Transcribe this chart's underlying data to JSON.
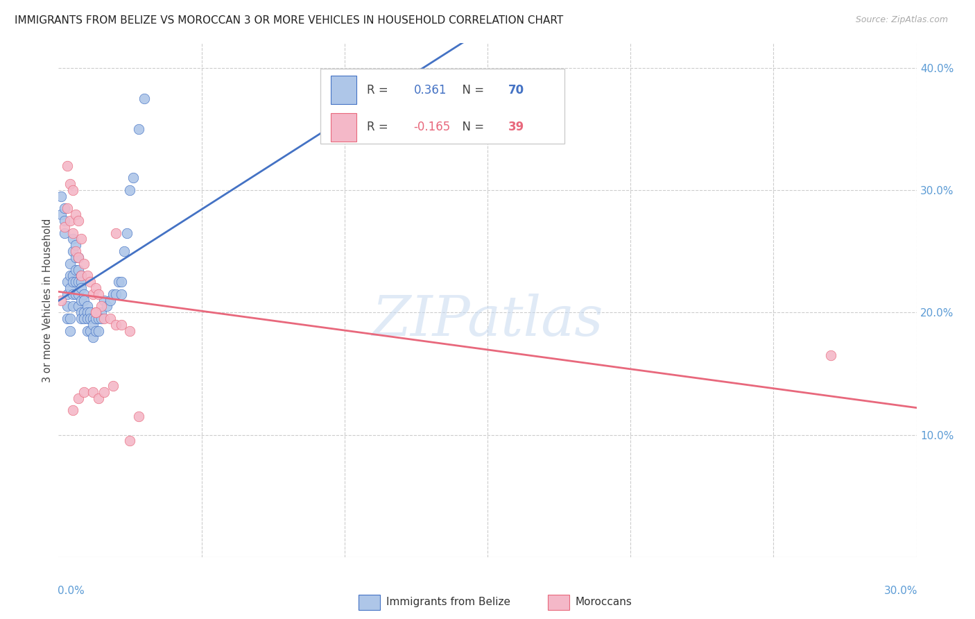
{
  "title": "IMMIGRANTS FROM BELIZE VS MOROCCAN 3 OR MORE VEHICLES IN HOUSEHOLD CORRELATION CHART",
  "source": "Source: ZipAtlas.com",
  "ylabel": "3 or more Vehicles in Household",
  "xlim": [
    0.0,
    0.3
  ],
  "ylim": [
    0.0,
    0.42
  ],
  "belize_R": 0.361,
  "belize_N": 70,
  "moroccan_R": -0.165,
  "moroccan_N": 39,
  "belize_color": "#aec6e8",
  "moroccan_color": "#f4b8c8",
  "belize_line_color": "#4472c4",
  "moroccan_line_color": "#e8687c",
  "tick_color": "#5b9bd5",
  "watermark": "ZIPatlas",
  "watermark_zip_color": "#c5d8ee",
  "watermark_atlas_color": "#d0c8e0",
  "grid_color": "#cccccc",
  "belize_x": [
    0.001,
    0.001,
    0.002,
    0.002,
    0.002,
    0.003,
    0.003,
    0.003,
    0.003,
    0.004,
    0.004,
    0.004,
    0.004,
    0.004,
    0.005,
    0.005,
    0.005,
    0.005,
    0.005,
    0.005,
    0.006,
    0.006,
    0.006,
    0.006,
    0.006,
    0.007,
    0.007,
    0.007,
    0.007,
    0.007,
    0.008,
    0.008,
    0.008,
    0.008,
    0.008,
    0.008,
    0.009,
    0.009,
    0.009,
    0.009,
    0.01,
    0.01,
    0.01,
    0.01,
    0.011,
    0.011,
    0.011,
    0.012,
    0.012,
    0.012,
    0.013,
    0.013,
    0.014,
    0.014,
    0.015,
    0.015,
    0.016,
    0.017,
    0.018,
    0.019,
    0.02,
    0.021,
    0.022,
    0.023,
    0.024,
    0.025,
    0.026,
    0.028,
    0.03,
    0.022
  ],
  "belize_y": [
    0.295,
    0.28,
    0.285,
    0.275,
    0.265,
    0.225,
    0.215,
    0.205,
    0.195,
    0.24,
    0.23,
    0.22,
    0.195,
    0.185,
    0.26,
    0.25,
    0.23,
    0.225,
    0.215,
    0.205,
    0.255,
    0.245,
    0.235,
    0.225,
    0.215,
    0.245,
    0.235,
    0.225,
    0.215,
    0.205,
    0.23,
    0.225,
    0.22,
    0.21,
    0.2,
    0.195,
    0.215,
    0.21,
    0.2,
    0.195,
    0.205,
    0.2,
    0.195,
    0.185,
    0.2,
    0.195,
    0.185,
    0.195,
    0.19,
    0.18,
    0.195,
    0.185,
    0.195,
    0.185,
    0.2,
    0.195,
    0.21,
    0.205,
    0.21,
    0.215,
    0.215,
    0.225,
    0.225,
    0.25,
    0.265,
    0.3,
    0.31,
    0.35,
    0.375,
    0.215
  ],
  "moroccan_x": [
    0.001,
    0.002,
    0.003,
    0.003,
    0.004,
    0.004,
    0.005,
    0.005,
    0.006,
    0.006,
    0.007,
    0.007,
    0.008,
    0.008,
    0.009,
    0.01,
    0.011,
    0.012,
    0.013,
    0.013,
    0.014,
    0.015,
    0.016,
    0.018,
    0.02,
    0.022,
    0.025,
    0.005,
    0.007,
    0.009,
    0.012,
    0.014,
    0.019,
    0.02,
    0.025,
    0.028,
    0.013,
    0.016,
    0.27
  ],
  "moroccan_y": [
    0.21,
    0.27,
    0.32,
    0.285,
    0.305,
    0.275,
    0.3,
    0.265,
    0.28,
    0.25,
    0.275,
    0.245,
    0.26,
    0.23,
    0.24,
    0.23,
    0.225,
    0.215,
    0.2,
    0.22,
    0.215,
    0.205,
    0.195,
    0.195,
    0.19,
    0.19,
    0.185,
    0.12,
    0.13,
    0.135,
    0.135,
    0.13,
    0.14,
    0.265,
    0.095,
    0.115,
    0.2,
    0.135,
    0.165
  ]
}
